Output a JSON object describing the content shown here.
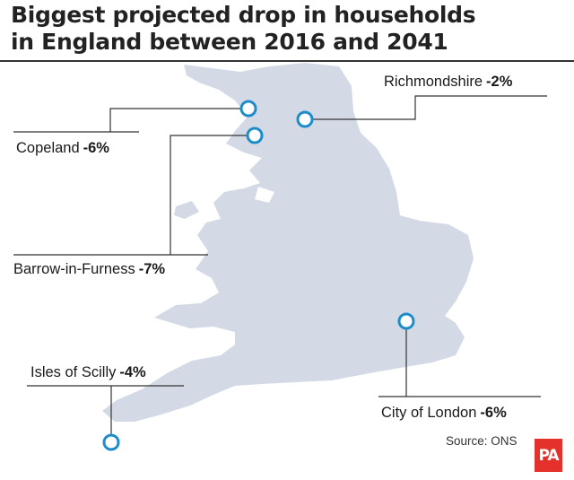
{
  "title_line1": "Biggest projected drop in households",
  "title_line2": "in England between 2016 and 2041",
  "colors": {
    "land": "#d3dae6",
    "marker": "#1d8cc9",
    "accent": "#e4312b"
  },
  "locations": [
    {
      "name": "Richmondshire",
      "value": "-2%"
    },
    {
      "name": "Copeland",
      "value": "-6%"
    },
    {
      "name": "Barrow-in-Furness",
      "value": "-7%"
    },
    {
      "name": "Isles of Scilly",
      "value": "-4%"
    },
    {
      "name": "City of London",
      "value": "-6%"
    }
  ],
  "source": "Source: ONS",
  "logo_text": "PA"
}
